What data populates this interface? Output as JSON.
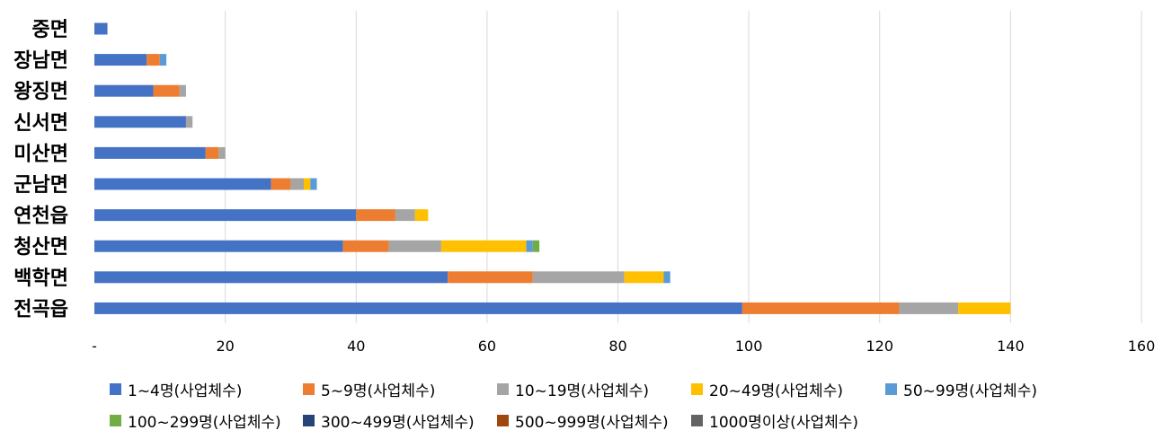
{
  "chart_data": {
    "type": "bar",
    "orientation": "horizontal",
    "stacked": true,
    "categories": [
      "중면",
      "장남면",
      "왕징면",
      "신서면",
      "미산면",
      "군남면",
      "연천읍",
      "청산면",
      "백학면",
      "전곡읍"
    ],
    "series": [
      {
        "name": "1~4명(사업체수)",
        "color": "#4472C4",
        "values": [
          2,
          8,
          9,
          14,
          17,
          27,
          40,
          38,
          54,
          99
        ]
      },
      {
        "name": "5~9명(사업체수)",
        "color": "#ED7D31",
        "values": [
          0,
          2,
          4,
          0,
          2,
          3,
          6,
          7,
          13,
          24
        ]
      },
      {
        "name": "10~19명(사업체수)",
        "color": "#A5A5A5",
        "values": [
          0,
          0,
          1,
          1,
          1,
          2,
          3,
          8,
          14,
          9
        ]
      },
      {
        "name": "20~49명(사업체수)",
        "color": "#FFC000",
        "values": [
          0,
          0,
          0,
          0,
          0,
          1,
          2,
          13,
          6,
          8
        ]
      },
      {
        "name": "50~99명(사업체수)",
        "color": "#5B9BD5",
        "values": [
          0,
          1,
          0,
          0,
          0,
          1,
          0,
          1,
          1,
          0
        ]
      },
      {
        "name": "100~299명(사업체수)",
        "color": "#70AD47",
        "values": [
          0,
          0,
          0,
          0,
          0,
          0,
          0,
          1,
          0,
          0
        ]
      },
      {
        "name": "300~499명(사업체수)",
        "color": "#264478",
        "values": [
          0,
          0,
          0,
          0,
          0,
          0,
          0,
          0,
          0,
          0
        ]
      },
      {
        "name": "500~999명(사업체수)",
        "color": "#9E480E",
        "values": [
          0,
          0,
          0,
          0,
          0,
          0,
          0,
          0,
          0,
          0
        ]
      },
      {
        "name": "1000명이상(사업체수)",
        "color": "#636363",
        "values": [
          0,
          0,
          0,
          0,
          0,
          0,
          0,
          0,
          0,
          0
        ]
      }
    ],
    "xlim": [
      0,
      160
    ],
    "xticks": [
      0,
      20,
      40,
      60,
      80,
      100,
      120,
      140,
      160
    ],
    "xtick_labels": [
      "-",
      "20",
      "40",
      "60",
      "80",
      "100",
      "120",
      "140",
      "160"
    ],
    "grid": true,
    "legend_position": "bottom"
  }
}
